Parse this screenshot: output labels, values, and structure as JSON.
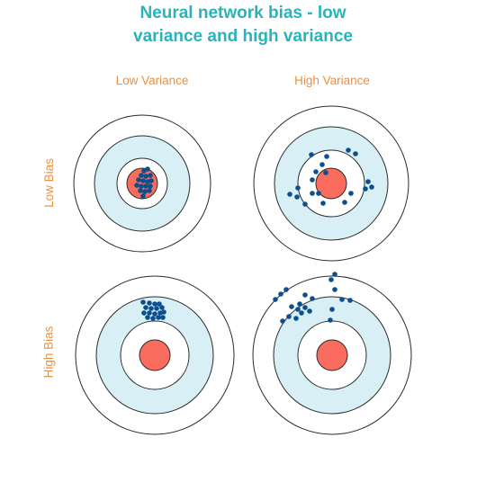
{
  "title": {
    "line1": "Neural network bias - low",
    "line2": "variance and high variance"
  },
  "columns": [
    "Low Variance",
    "High Variance"
  ],
  "rows": [
    "Low Bias",
    "High Bias"
  ],
  "colors": {
    "title": "#2bb3bb",
    "label": "#ee8f3d",
    "ring_fill_outer": "#ffffff",
    "ring_fill_mid": "#d8f0f5",
    "ring_fill_inner": "#ffffff",
    "bullseye": "#fa6d5e",
    "ring_stroke": "#2b2b2b",
    "dot": "#0c4f8f"
  }
}
